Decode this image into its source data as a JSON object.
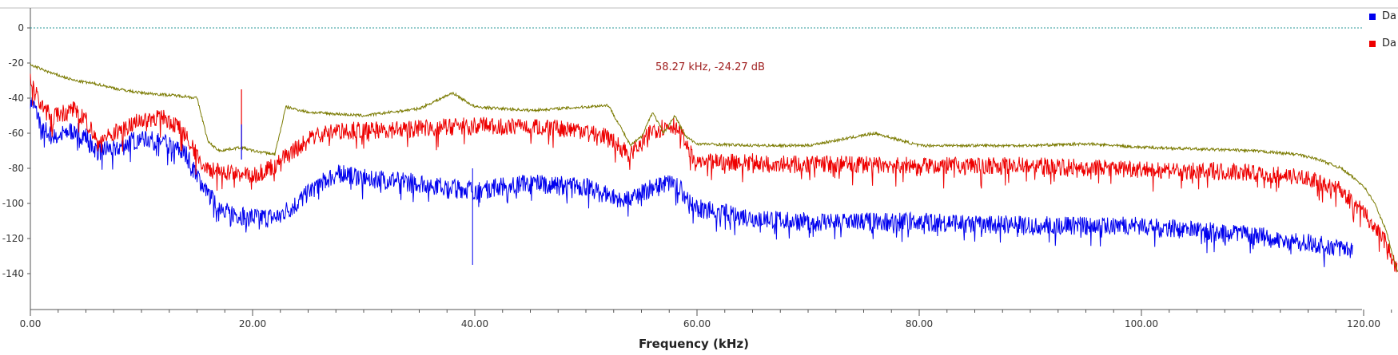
{
  "chart_data": {
    "type": "line",
    "xlabel": "Frequency (kHz)",
    "ylabel": "",
    "xlim": [
      0,
      124.5
    ],
    "ylim": [
      -142,
      2
    ],
    "x_ticks": [
      "0.00",
      "20.00",
      "40.00",
      "60.00",
      "80.00",
      "100.00",
      "120.00"
    ],
    "x_tick_values": [
      0,
      20,
      40,
      60,
      80,
      100,
      120
    ],
    "y_ticks": [
      "0",
      "-20",
      "-40",
      "-60",
      "-80",
      "-100",
      "-120",
      "-140"
    ],
    "y_tick_values": [
      0,
      -20,
      -40,
      -60,
      -80,
      -100,
      -120,
      -140
    ],
    "reference_line": 0,
    "marker_label": "58.27 kHz, -24.27 dB",
    "series": [
      {
        "name": "Da",
        "color": "#0000ee",
        "x": [
          0,
          1,
          2,
          3,
          4,
          5,
          6,
          8,
          10,
          12,
          14,
          16,
          18,
          20,
          22,
          24,
          26,
          28,
          30,
          35,
          40,
          45,
          50,
          52,
          54,
          56,
          58,
          60,
          65,
          70,
          80,
          90,
          100,
          110,
          115,
          119
        ],
        "values": [
          -40,
          -55,
          -62,
          -60,
          -58,
          -62,
          -70,
          -68,
          -62,
          -65,
          -72,
          -95,
          -105,
          -108,
          -108,
          -100,
          -88,
          -82,
          -85,
          -88,
          -92,
          -88,
          -90,
          -95,
          -98,
          -90,
          -88,
          -102,
          -108,
          -110,
          -110,
          -112,
          -112,
          -118,
          -122,
          -126
        ]
      },
      {
        "name": "Da",
        "color": "#ee0000",
        "x": [
          0,
          1,
          2,
          3,
          4,
          5,
          6,
          8,
          10,
          12,
          14,
          15,
          16,
          18,
          20,
          22,
          24,
          26,
          28,
          30,
          35,
          40,
          45,
          50,
          52,
          54,
          56,
          58,
          60,
          65,
          70,
          80,
          90,
          100,
          110,
          115,
          118,
          120,
          122,
          123
        ],
        "values": [
          -30,
          -45,
          -50,
          -48,
          -46,
          -52,
          -65,
          -58,
          -52,
          -50,
          -60,
          -72,
          -80,
          -82,
          -84,
          -78,
          -68,
          -60,
          -58,
          -58,
          -57,
          -55,
          -56,
          -58,
          -62,
          -72,
          -58,
          -55,
          -76,
          -76,
          -77,
          -78,
          -78,
          -80,
          -82,
          -85,
          -92,
          -105,
          -122,
          -138
        ]
      },
      {
        "name": "",
        "color": "#7a7a00",
        "x": [
          0,
          2,
          4,
          6,
          8,
          10,
          12,
          14,
          15,
          16,
          17,
          18,
          19,
          20,
          21,
          22,
          23,
          25,
          30,
          35,
          38,
          40,
          45,
          50,
          52,
          53,
          54,
          55,
          56,
          57,
          58,
          59,
          60,
          65,
          70,
          76,
          80,
          90,
          95,
          100,
          105,
          110,
          114,
          116,
          118,
          120,
          121,
          122,
          123,
          124.5
        ],
        "values": [
          -21,
          -26,
          -30,
          -32,
          -35,
          -37,
          -38,
          -39,
          -40,
          -65,
          -70,
          -69,
          -68,
          -70,
          -71,
          -72,
          -45,
          -48,
          -50,
          -46,
          -37,
          -45,
          -47,
          -45,
          -44,
          -55,
          -67,
          -62,
          -48,
          -60,
          -50,
          -62,
          -66,
          -67,
          -67,
          -60,
          -67,
          -67,
          -66,
          -68,
          -69,
          -70,
          -72,
          -75,
          -80,
          -90,
          -100,
          -115,
          -138,
          -140
        ]
      }
    ]
  }
}
